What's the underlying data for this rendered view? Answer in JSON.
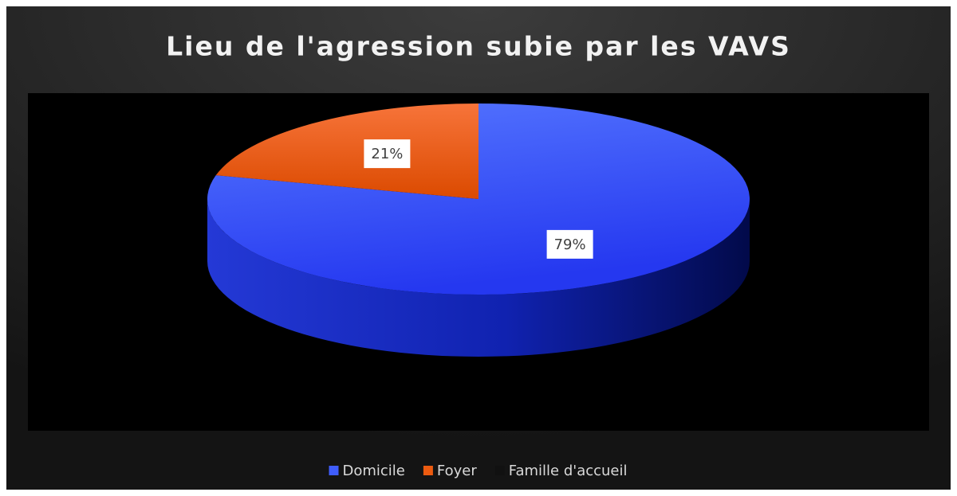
{
  "chart_data": {
    "type": "pie",
    "title": "Lieu de l'agression subie par les VAVS",
    "categories": [
      "Domicile",
      "Foyer",
      "Famille d'accueil"
    ],
    "values": [
      79,
      21,
      0
    ],
    "value_labels": [
      "79%",
      "21%",
      null
    ],
    "colors": [
      "#3f5dfc",
      "#ec5b10",
      "#111111"
    ],
    "legend": "bottom"
  }
}
